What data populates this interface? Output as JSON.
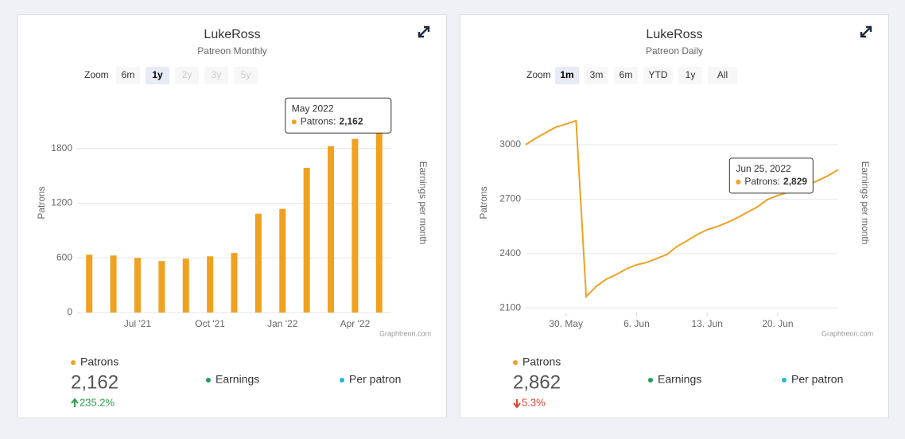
{
  "chart_data": [
    {
      "type": "bar",
      "title": "LukeRoss",
      "subtitle": "Patreon Monthly",
      "zoom": {
        "label": "Zoom",
        "buttons": [
          {
            "text": "6m",
            "state": "normal"
          },
          {
            "text": "1y",
            "state": "active"
          },
          {
            "text": "2y",
            "state": "disabled"
          },
          {
            "text": "3y",
            "state": "disabled"
          },
          {
            "text": "5y",
            "state": "disabled"
          }
        ]
      },
      "y_label": "Patrons",
      "y2_label": "Earnings per month",
      "credit": "Graphtreon.com",
      "categories": [
        null,
        null,
        "Jul '21",
        null,
        null,
        "Oct '21",
        null,
        null,
        "Jan '22",
        null,
        null,
        "Apr '22",
        null
      ],
      "values": [
        635,
        626,
        600,
        565,
        591,
        617,
        653,
        1085,
        1138,
        1588,
        1826,
        1905,
        2162
      ],
      "color": "#f0a11f",
      "ylim": [
        0,
        2400
      ],
      "yticks": [
        0,
        600,
        1200,
        1800
      ],
      "grid": true,
      "tooltip": {
        "index": 12,
        "title": "May 2022",
        "label": "Patrons:",
        "value_label": "2,162"
      },
      "legend": [
        {
          "name": "Patrons",
          "color": "#f0a11f"
        },
        {
          "name": "Earnings",
          "color": "#1e9e5a"
        },
        {
          "name": "Per patron",
          "color": "#27b4d8"
        }
      ],
      "summary": {
        "value": "2,162",
        "change": "235.2%",
        "direction": "up"
      }
    },
    {
      "type": "line",
      "title": "LukeRoss",
      "subtitle": "Patreon Daily",
      "zoom": {
        "label": "Zoom",
        "buttons": [
          {
            "text": "1m",
            "state": "active"
          },
          {
            "text": "3m",
            "state": "normal"
          },
          {
            "text": "6m",
            "state": "normal"
          },
          {
            "text": "YTD",
            "state": "normal"
          },
          {
            "text": "1y",
            "state": "normal"
          },
          {
            "text": "All",
            "state": "normal"
          }
        ]
      },
      "y_label": "Patrons",
      "y2_label": "Earnings per month",
      "credit": "Graphtreon.com",
      "x": [
        "2022-05-26",
        "2022-05-27",
        "2022-05-28",
        "2022-05-29",
        "2022-05-30",
        "2022-05-31",
        "2022-06-01",
        "2022-06-02",
        "2022-06-03",
        "2022-06-04",
        "2022-06-05",
        "2022-06-06",
        "2022-06-07",
        "2022-06-08",
        "2022-06-09",
        "2022-06-10",
        "2022-06-11",
        "2022-06-12",
        "2022-06-13",
        "2022-06-14",
        "2022-06-15",
        "2022-06-16",
        "2022-06-17",
        "2022-06-18",
        "2022-06-19",
        "2022-06-20",
        "2022-06-21",
        "2022-06-22",
        "2022-06-23",
        "2022-06-24",
        "2022-06-25",
        "2022-06-26"
      ],
      "values": [
        3000,
        3035,
        3066,
        3097,
        3114,
        3132,
        2162,
        2219,
        2259,
        2285,
        2316,
        2338,
        2351,
        2373,
        2395,
        2439,
        2470,
        2505,
        2531,
        2549,
        2571,
        2597,
        2628,
        2658,
        2698,
        2720,
        2737,
        2759,
        2781,
        2803,
        2829,
        2862
      ],
      "color": "#f0a11f",
      "xlim": [
        "2022-05-26",
        "2022-06-26"
      ],
      "xticks": [
        {
          "value": "2022-05-30",
          "label": "30. May"
        },
        {
          "value": "2022-06-06",
          "label": "6. Jun"
        },
        {
          "value": "2022-06-13",
          "label": "13. Jun"
        },
        {
          "value": "2022-06-20",
          "label": "20. Jun"
        }
      ],
      "ylim": [
        2075,
        3280
      ],
      "yticks": [
        2100,
        2400,
        2700,
        3000
      ],
      "grid": true,
      "tooltip": {
        "index": 30,
        "title": "Jun 25, 2022",
        "label": "Patrons:",
        "value_label": "2,829"
      },
      "legend": [
        {
          "name": "Patrons",
          "color": "#f0a11f"
        },
        {
          "name": "Earnings",
          "color": "#1e9e5a"
        },
        {
          "name": "Per patron",
          "color": "#27b4d8"
        }
      ],
      "summary": {
        "value": "2,862",
        "change": "5.3%",
        "direction": "down"
      }
    }
  ]
}
